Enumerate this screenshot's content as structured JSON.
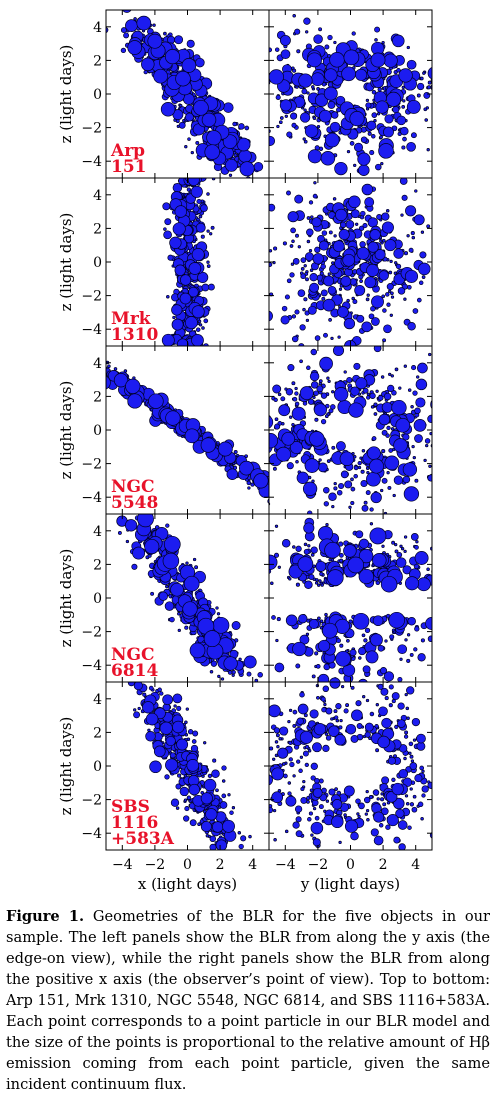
{
  "chart_data": {
    "type": "scatter",
    "x_axis": {
      "label": "x (light days)",
      "ticks": [
        -4,
        -2,
        0,
        2,
        4
      ],
      "lim": [
        -5,
        5
      ]
    },
    "y_axis_right": {
      "label": "y (light days)",
      "ticks": [
        -4,
        -2,
        0,
        2,
        4
      ],
      "lim": [
        -5,
        5
      ]
    },
    "z_axis": {
      "label": "z (light days)",
      "ticks": [
        4,
        2,
        0,
        -2,
        -4
      ],
      "lim": [
        -5,
        5
      ]
    },
    "point_color": "#1c1cf0",
    "panels": [
      {
        "object_lines": [
          "Arp",
          "151"
        ],
        "left_model": "tilt",
        "slope": -1.2,
        "spread": 1.4,
        "right_model": "ring",
        "hole": 0.6,
        "sizeScale": 1.0
      },
      {
        "object_lines": [
          "Mrk",
          "1310"
        ],
        "left_model": "vertical",
        "slope": 0,
        "spread": 0.7,
        "right_model": "cloud",
        "hole": 0.0,
        "sizeScale": 0.8
      },
      {
        "object_lines": [
          "NGC",
          "5548"
        ],
        "left_model": "tilt",
        "slope": -0.55,
        "spread": 0.9,
        "right_model": "ring",
        "hole": 1.1,
        "sizeScale": 1.0
      },
      {
        "object_lines": [
          "NGC",
          "6814"
        ],
        "left_model": "tilt",
        "slope": -1.3,
        "spread": 1.2,
        "right_model": "upper",
        "hole": 0.4,
        "sizeScale": 1.1
      },
      {
        "object_lines": [
          "SBS",
          "1116",
          "+583A"
        ],
        "left_model": "tilt",
        "slope": -1.7,
        "spread": 1.1,
        "right_model": "ring",
        "hole": 1.4,
        "sizeScale": 0.8
      }
    ]
  },
  "caption": {
    "label": "Figure 1.",
    "text": " Geometries of the BLR for the five objects in our sample. The left panels show the BLR from along the y axis (the edge-on view), while the right panels show the BLR from along the positive x axis (the observer’s point of view). Top to bottom: Arp 151, Mrk 1310, NGC 5548, NGC 6814, and SBS 1116+583A. Each point corresponds to a point particle in our BLR model and the size of the points is proportional to the relative amount of Hβ emission coming from each point particle, given the same incident continuum flux."
  }
}
